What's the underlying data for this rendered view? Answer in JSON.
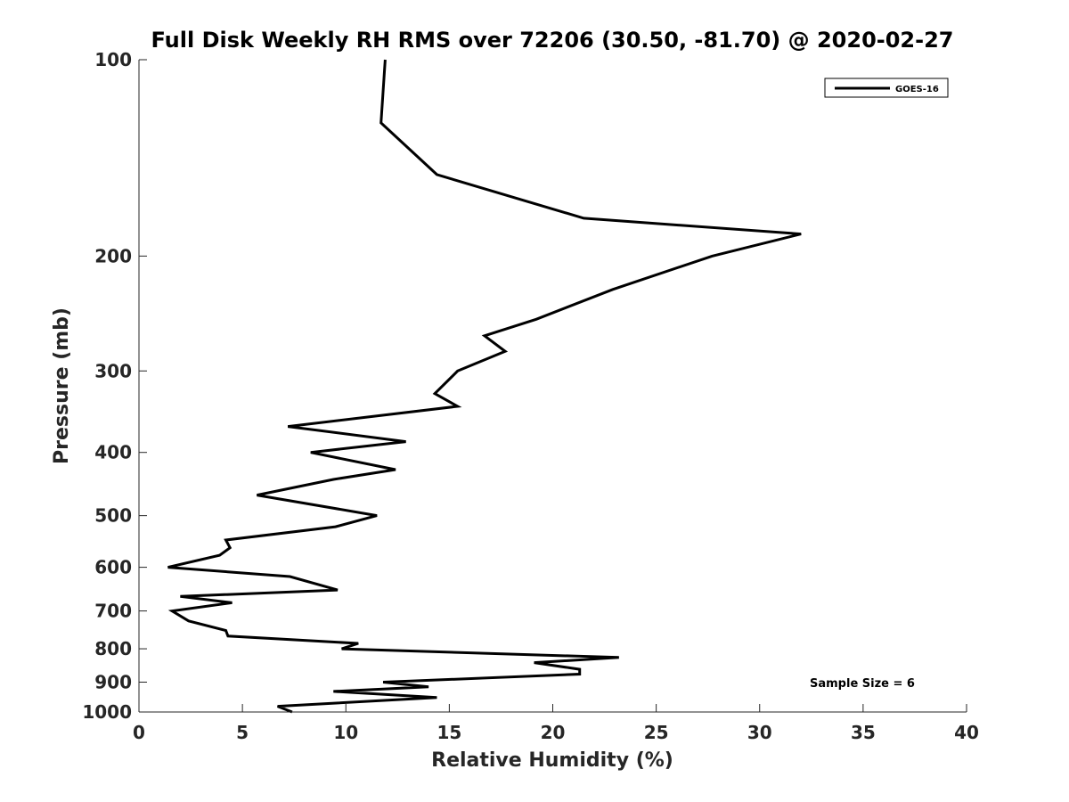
{
  "chart_data": {
    "type": "line",
    "title": "Full Disk Weekly RH RMS over 72206 (30.50, -81.70) @ 2020-02-27",
    "xlabel": "Relative Humidity (%)",
    "ylabel": "Pressure (mb)",
    "xlim": [
      0,
      40
    ],
    "ylim": [
      100,
      1000
    ],
    "yscale": "log",
    "y_reversed": true,
    "xticks": [
      0,
      5,
      10,
      15,
      20,
      25,
      30,
      35,
      40
    ],
    "yticks": [
      100,
      200,
      300,
      400,
      500,
      600,
      700,
      800,
      900,
      1000
    ],
    "grid": false,
    "legend_position": "top-right",
    "annotation": "Sample Size = 6",
    "series": [
      {
        "name": "GOES-16",
        "color": "#000000",
        "x": [
          11.9,
          11.7,
          14.4,
          21.5,
          32.0,
          27.7,
          22.9,
          19.2,
          16.7,
          17.7,
          15.4,
          14.3,
          15.4,
          7.2,
          12.9,
          8.3,
          12.4,
          9.4,
          5.7,
          11.5,
          9.5,
          4.2,
          4.4,
          3.9,
          1.4,
          7.3,
          9.6,
          2.0,
          4.5,
          1.6,
          2.4,
          4.2,
          4.3,
          10.6,
          9.8,
          23.2,
          19.1,
          21.3,
          21.3,
          11.8,
          14.0,
          9.4,
          14.4,
          6.7,
          7.4
        ],
        "y": [
          100,
          125,
          150,
          175,
          185,
          200,
          225,
          250,
          265,
          280,
          300,
          325,
          340,
          365,
          385,
          400,
          425,
          440,
          465,
          500,
          520,
          545,
          560,
          575,
          600,
          620,
          650,
          665,
          680,
          700,
          725,
          750,
          765,
          785,
          800,
          825,
          840,
          860,
          875,
          900,
          915,
          930,
          950,
          980,
          1000
        ]
      }
    ]
  }
}
